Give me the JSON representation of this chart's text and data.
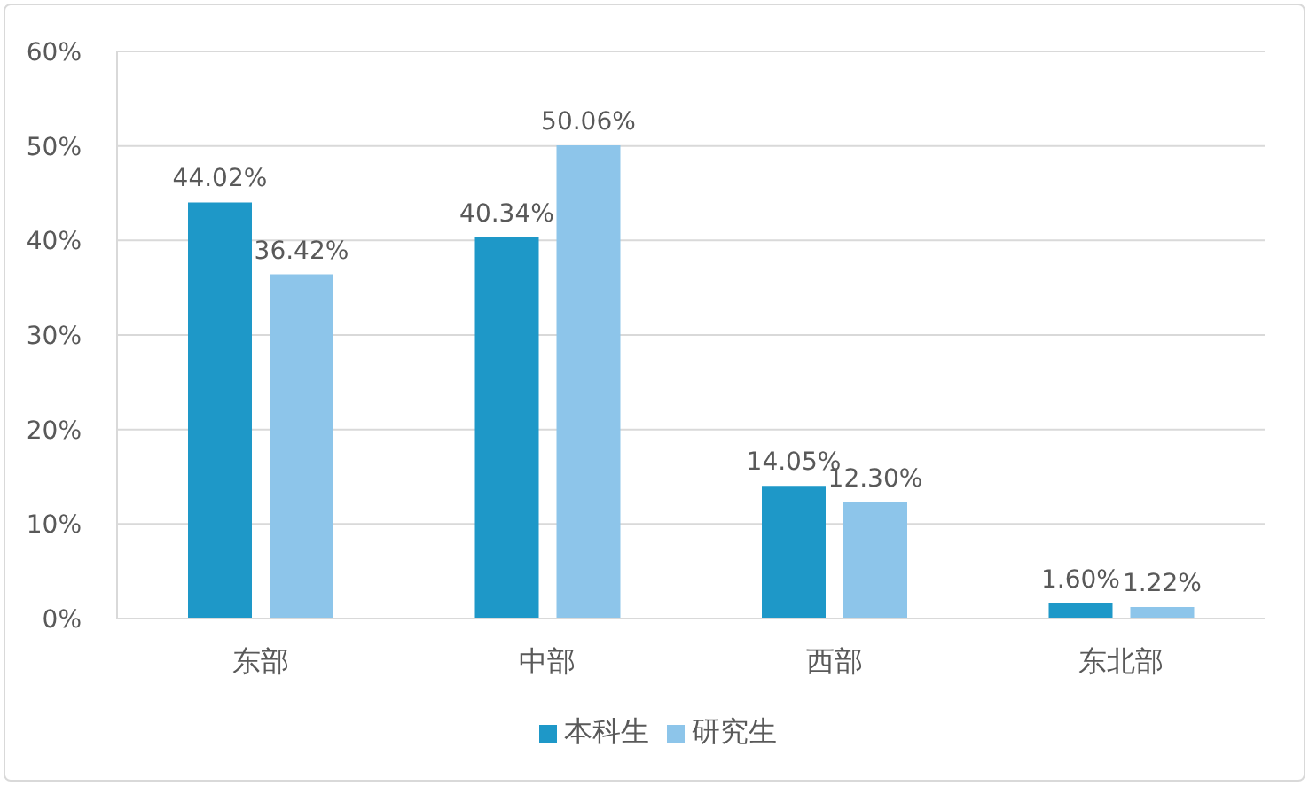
{
  "chart_data": {
    "type": "bar",
    "categories": [
      "东部",
      "中部",
      "西部",
      "东北部"
    ],
    "series": [
      {
        "name": "本科生",
        "color": "#1e98c8",
        "values": [
          44.02,
          40.34,
          14.05,
          1.6
        ],
        "value_labels": [
          "44.02%",
          "40.34%",
          "14.05%",
          "1.60%"
        ]
      },
      {
        "name": "研究生",
        "color": "#8dc5ea",
        "values": [
          36.42,
          50.06,
          12.3,
          1.22
        ],
        "value_labels": [
          "36.42%",
          "50.06%",
          "12.30%",
          "1.22%"
        ]
      }
    ],
    "ylim": [
      0,
      60
    ],
    "yticks": [
      {
        "value": 0,
        "label": "0%"
      },
      {
        "value": 10,
        "label": "10%"
      },
      {
        "value": 20,
        "label": "20%"
      },
      {
        "value": 30,
        "label": "30%"
      },
      {
        "value": 40,
        "label": "40%"
      },
      {
        "value": 50,
        "label": "50%"
      },
      {
        "value": 60,
        "label": "60%"
      }
    ],
    "grid": "y",
    "legend": "bottom"
  }
}
